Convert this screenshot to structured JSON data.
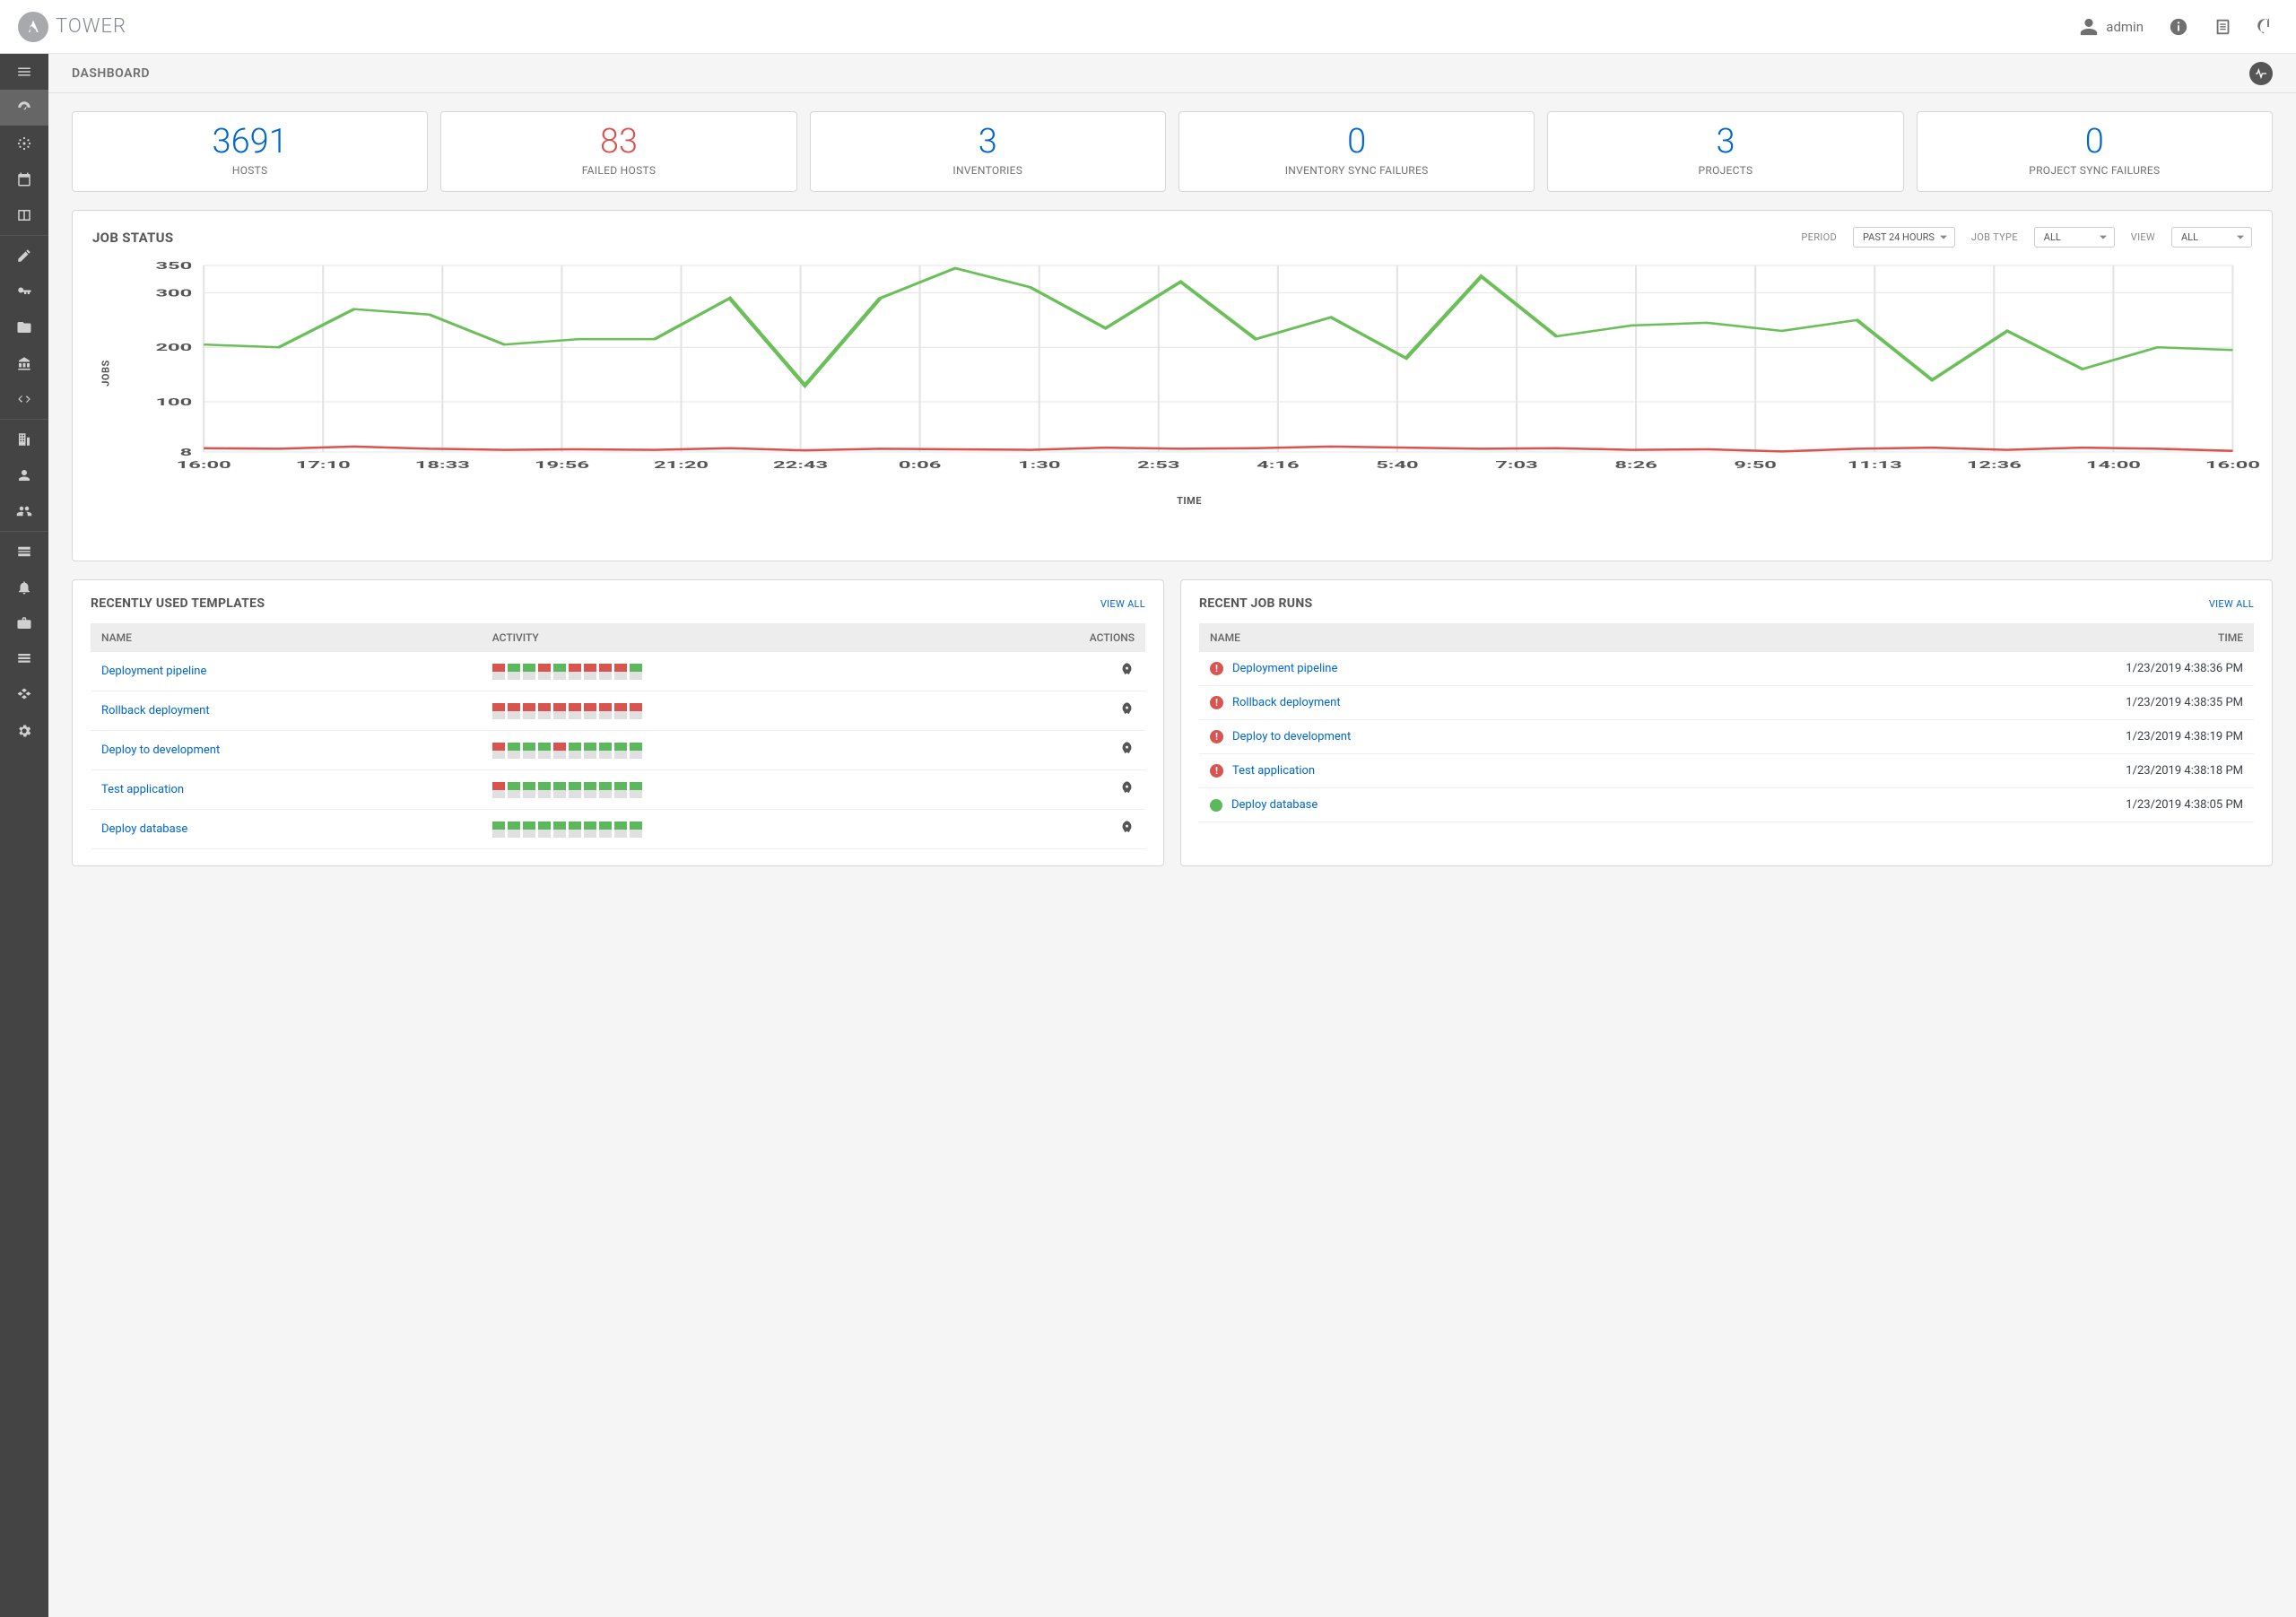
{
  "brand": "TOWER",
  "user": "admin",
  "page_title": "DASHBOARD",
  "stats": [
    {
      "value": "3691",
      "label": "HOSTS",
      "fail": false
    },
    {
      "value": "83",
      "label": "FAILED HOSTS",
      "fail": true
    },
    {
      "value": "3",
      "label": "INVENTORIES",
      "fail": false
    },
    {
      "value": "0",
      "label": "INVENTORY SYNC FAILURES",
      "fail": false
    },
    {
      "value": "3",
      "label": "PROJECTS",
      "fail": false
    },
    {
      "value": "0",
      "label": "PROJECT SYNC FAILURES",
      "fail": false
    }
  ],
  "chart": {
    "title": "JOB STATUS",
    "period_label": "PERIOD",
    "period_value": "PAST 24 HOURS",
    "jobtype_label": "JOB TYPE",
    "jobtype_value": "ALL",
    "view_label": "VIEW",
    "view_value": "ALL",
    "ylabel": "JOBS",
    "xlabel": "TIME",
    "ylim": [
      8,
      350
    ],
    "yticks": [
      8,
      100,
      200,
      300,
      350
    ],
    "xticks": [
      "16:00",
      "17:10",
      "18:33",
      "19:56",
      "21:20",
      "22:43",
      "0:06",
      "1:30",
      "2:53",
      "4:16",
      "5:40",
      "7:03",
      "8:26",
      "9:50",
      "11:13",
      "12:36",
      "14:00",
      "16:00"
    ],
    "green": [
      205,
      200,
      270,
      260,
      205,
      215,
      215,
      290,
      130,
      290,
      345,
      310,
      235,
      320,
      215,
      255,
      180,
      330,
      220,
      240,
      245,
      230,
      250,
      140,
      230,
      160,
      200,
      195
    ],
    "red": [
      15,
      14,
      18,
      14,
      12,
      13,
      12,
      15,
      11,
      14,
      13,
      12,
      16,
      14,
      15,
      18,
      16,
      14,
      15,
      12,
      13,
      9,
      14,
      16,
      12,
      16,
      14,
      10
    ],
    "green_color": "#6bbf59",
    "red_color": "#d9534f",
    "grid_color": "#e4e4e4"
  },
  "templates": {
    "title": "RECENTLY USED TEMPLATES",
    "view_all": "VIEW ALL",
    "cols": {
      "name": "NAME",
      "activity": "ACTIVITY",
      "actions": "ACTIONS"
    },
    "rows": [
      {
        "name": "Deployment pipeline",
        "activity": [
          "red",
          "green",
          "green",
          "red",
          "green",
          "red",
          "red",
          "red",
          "red",
          "green"
        ]
      },
      {
        "name": "Rollback deployment",
        "activity": [
          "red",
          "red",
          "red",
          "red",
          "red",
          "red",
          "red",
          "red",
          "red",
          "red"
        ]
      },
      {
        "name": "Deploy to development",
        "activity": [
          "red",
          "green",
          "green",
          "green",
          "red",
          "green",
          "green",
          "green",
          "green",
          "green"
        ]
      },
      {
        "name": "Test application",
        "activity": [
          "red",
          "green",
          "green",
          "green",
          "green",
          "green",
          "green",
          "green",
          "green",
          "green"
        ]
      },
      {
        "name": "Deploy database",
        "activity": [
          "green",
          "green",
          "green",
          "green",
          "green",
          "green",
          "green",
          "green",
          "green",
          "green"
        ]
      }
    ]
  },
  "runs": {
    "title": "RECENT JOB RUNS",
    "view_all": "VIEW ALL",
    "cols": {
      "name": "NAME",
      "time": "TIME"
    },
    "rows": [
      {
        "status": "fail",
        "name": "Deployment pipeline",
        "time": "1/23/2019 4:38:36 PM"
      },
      {
        "status": "fail",
        "name": "Rollback deployment",
        "time": "1/23/2019 4:38:35 PM"
      },
      {
        "status": "fail",
        "name": "Deploy to development",
        "time": "1/23/2019 4:38:19 PM"
      },
      {
        "status": "fail",
        "name": "Test application",
        "time": "1/23/2019 4:38:18 PM"
      },
      {
        "status": "ok",
        "name": "Deploy database",
        "time": "1/23/2019 4:38:05 PM"
      }
    ]
  }
}
